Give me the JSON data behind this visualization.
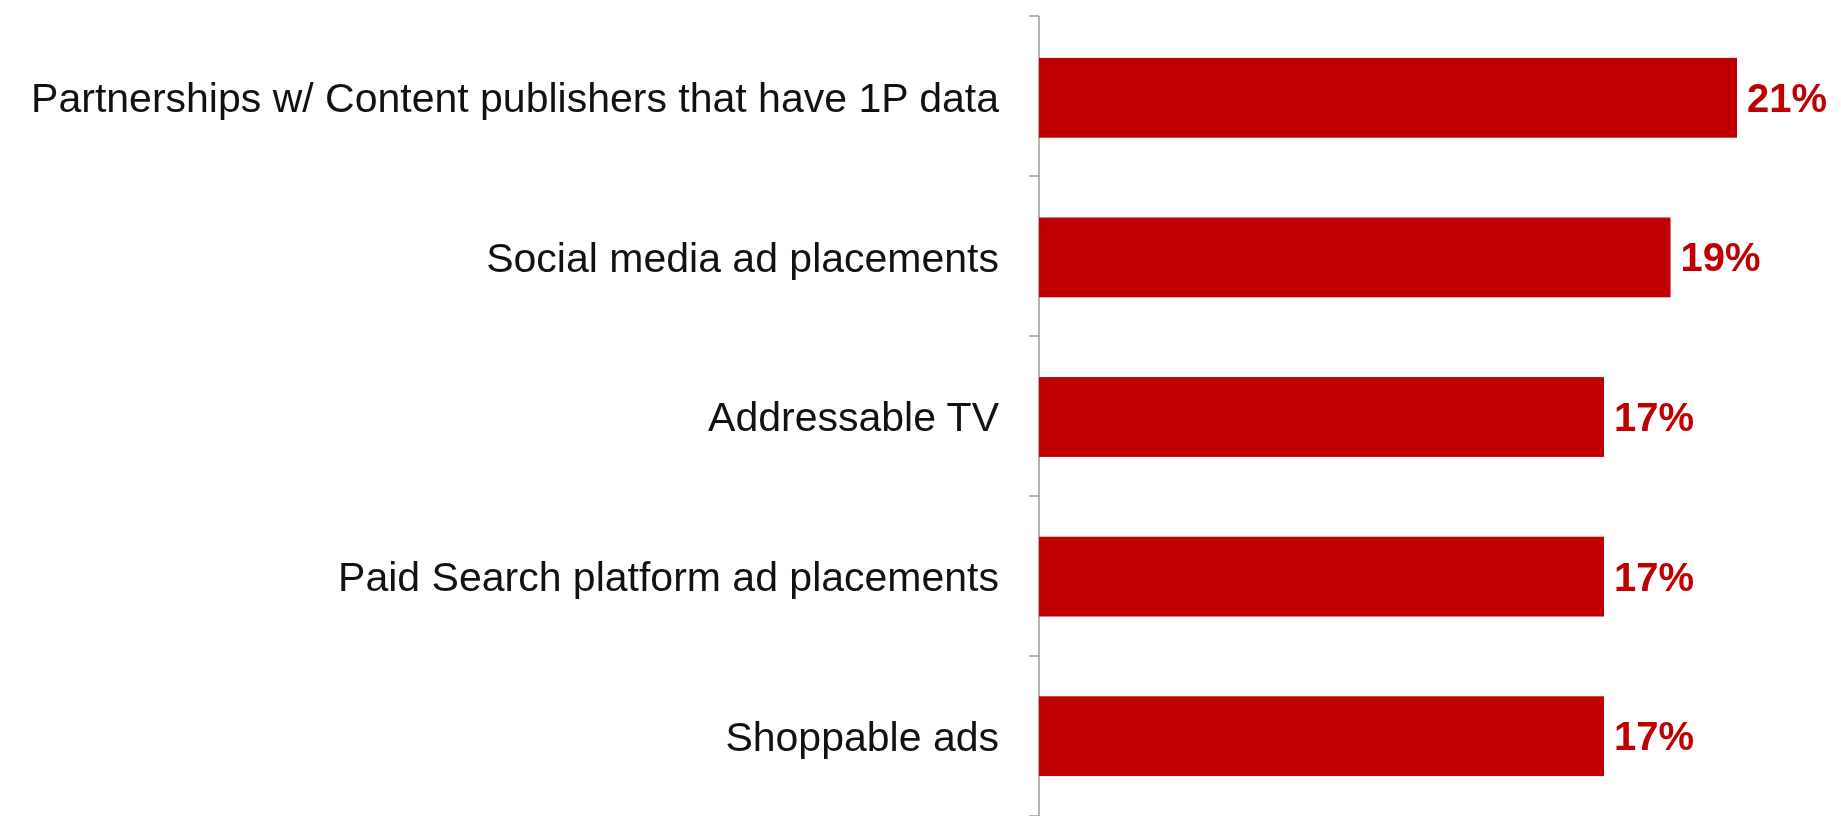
{
  "chart_data": {
    "type": "bar",
    "orientation": "horizontal",
    "categories": [
      "Partnerships w/ Content publishers that have 1P data",
      "Social media ad placements",
      "Addressable TV",
      "Paid Search platform ad placements",
      "Shoppable ads"
    ],
    "values": [
      21,
      19,
      17,
      17,
      17
    ],
    "value_labels": [
      "21%",
      "19%",
      "17%",
      "17%",
      "17%"
    ],
    "color": "#c00000"
  }
}
